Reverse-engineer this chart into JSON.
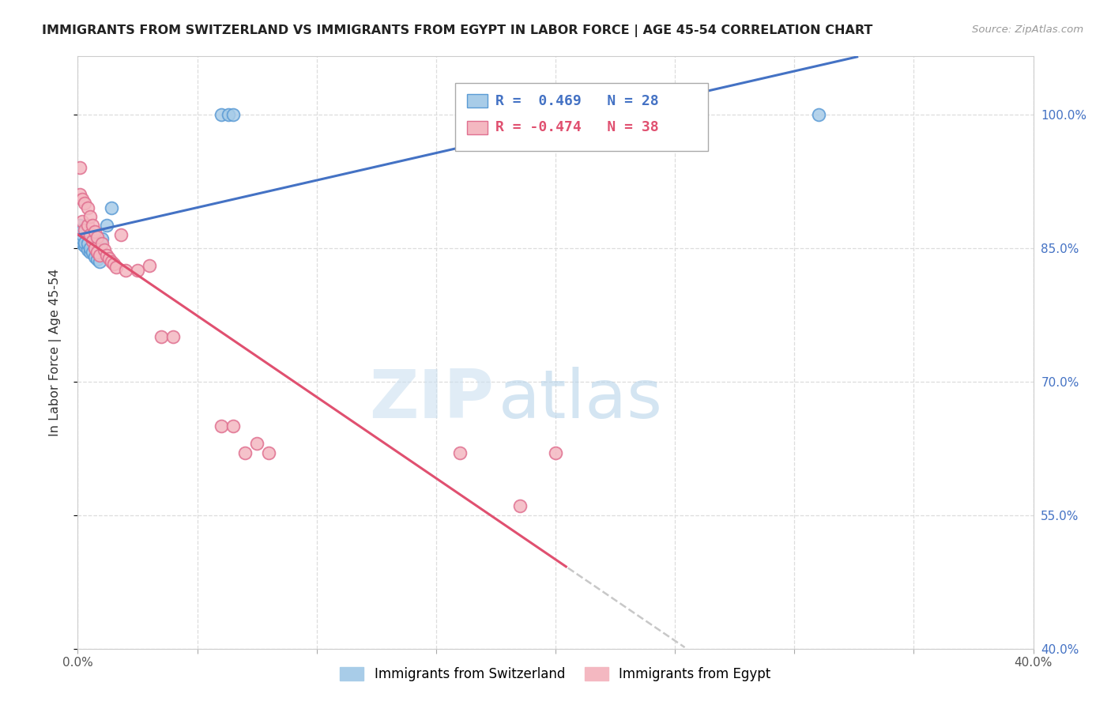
{
  "title": "IMMIGRANTS FROM SWITZERLAND VS IMMIGRANTS FROM EGYPT IN LABOR FORCE | AGE 45-54 CORRELATION CHART",
  "source": "Source: ZipAtlas.com",
  "ylabel": "In Labor Force | Age 45-54",
  "xlim": [
    0.0,
    0.4
  ],
  "ylim": [
    0.4,
    1.065
  ],
  "swiss_R": 0.469,
  "swiss_N": 28,
  "egypt_R": -0.474,
  "egypt_N": 38,
  "swiss_color": "#a8cce8",
  "egypt_color": "#f4b8c1",
  "swiss_edge_color": "#5b9bd5",
  "egypt_edge_color": "#e07090",
  "swiss_line_color": "#4472c4",
  "egypt_line_color": "#e05070",
  "trend_ext_color": "#c8c8c8",
  "swiss_x": [
    0.001,
    0.001,
    0.001,
    0.001,
    0.001,
    0.001,
    0.002,
    0.002,
    0.002,
    0.002,
    0.003,
    0.003,
    0.004,
    0.004,
    0.005,
    0.005,
    0.006,
    0.007,
    0.008,
    0.008,
    0.009,
    0.01,
    0.012,
    0.014,
    0.06,
    0.063,
    0.065,
    0.31
  ],
  "swiss_y": [
    0.858,
    0.861,
    0.864,
    0.867,
    0.87,
    0.875,
    0.855,
    0.86,
    0.865,
    0.87,
    0.852,
    0.856,
    0.848,
    0.855,
    0.845,
    0.85,
    0.845,
    0.84,
    0.837,
    0.845,
    0.835,
    0.86,
    0.875,
    0.895,
    1.0,
    1.0,
    1.0,
    1.0
  ],
  "egypt_x": [
    0.001,
    0.001,
    0.002,
    0.002,
    0.003,
    0.003,
    0.004,
    0.004,
    0.005,
    0.005,
    0.006,
    0.006,
    0.007,
    0.007,
    0.008,
    0.008,
    0.009,
    0.01,
    0.011,
    0.012,
    0.013,
    0.014,
    0.015,
    0.016,
    0.018,
    0.02,
    0.025,
    0.03,
    0.035,
    0.04,
    0.06,
    0.065,
    0.07,
    0.075,
    0.08,
    0.16,
    0.185,
    0.2
  ],
  "egypt_y": [
    0.91,
    0.94,
    0.88,
    0.905,
    0.87,
    0.9,
    0.875,
    0.895,
    0.865,
    0.885,
    0.858,
    0.875,
    0.85,
    0.868,
    0.845,
    0.862,
    0.842,
    0.855,
    0.848,
    0.842,
    0.838,
    0.835,
    0.832,
    0.828,
    0.865,
    0.825,
    0.825,
    0.83,
    0.75,
    0.75,
    0.65,
    0.65,
    0.62,
    0.63,
    0.62,
    0.62,
    0.56,
    0.62
  ],
  "background_color": "#ffffff",
  "grid_color": "#dddddd",
  "ytick_vals": [
    0.4,
    0.55,
    0.7,
    0.85,
    1.0
  ],
  "ytick_labels": [
    "40.0%",
    "55.0%",
    "70.0%",
    "85.0%",
    "100.0%"
  ],
  "ytick_color": "#4472c4",
  "xtick_color": "#555555"
}
